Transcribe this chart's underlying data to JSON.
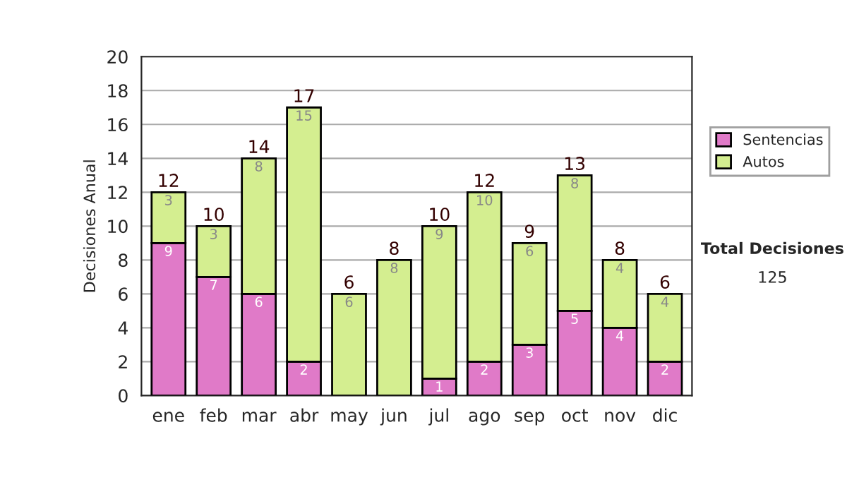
{
  "chart_data": {
    "type": "bar",
    "stacked": true,
    "ylabel": "Decisiones Anual",
    "categories": [
      "ene",
      "feb",
      "mar",
      "abr",
      "may",
      "jun",
      "jul",
      "ago",
      "sep",
      "oct",
      "nov",
      "dic"
    ],
    "series": [
      {
        "name": "Sentencias",
        "color": "#e07ac8",
        "values": [
          9,
          7,
          6,
          2,
          0,
          0,
          1,
          2,
          3,
          5,
          4,
          2
        ],
        "value_labels": [
          "9",
          "7",
          "6",
          "2",
          null,
          null,
          "1",
          "2",
          "3",
          "5",
          "4",
          "2"
        ]
      },
      {
        "name": "Autos",
        "color": "#d4ee90",
        "values": [
          3,
          3,
          8,
          15,
          6,
          8,
          9,
          10,
          6,
          8,
          4,
          4
        ],
        "value_labels": [
          "3",
          "3",
          "8",
          "15",
          "6",
          "8",
          "9",
          "10",
          "6",
          "8",
          "4",
          "4"
        ]
      }
    ],
    "totals": [
      "12",
      "10",
      "14",
      "17",
      "6",
      "8",
      "10",
      "12",
      "9",
      "13",
      "8",
      "6"
    ],
    "ylim": [
      0,
      20
    ],
    "yticks": [
      0,
      2,
      4,
      6,
      8,
      10,
      12,
      14,
      16,
      18,
      20
    ],
    "grid": "y",
    "legend": "right",
    "annotations": [
      "Total Decisiones",
      "125"
    ]
  }
}
